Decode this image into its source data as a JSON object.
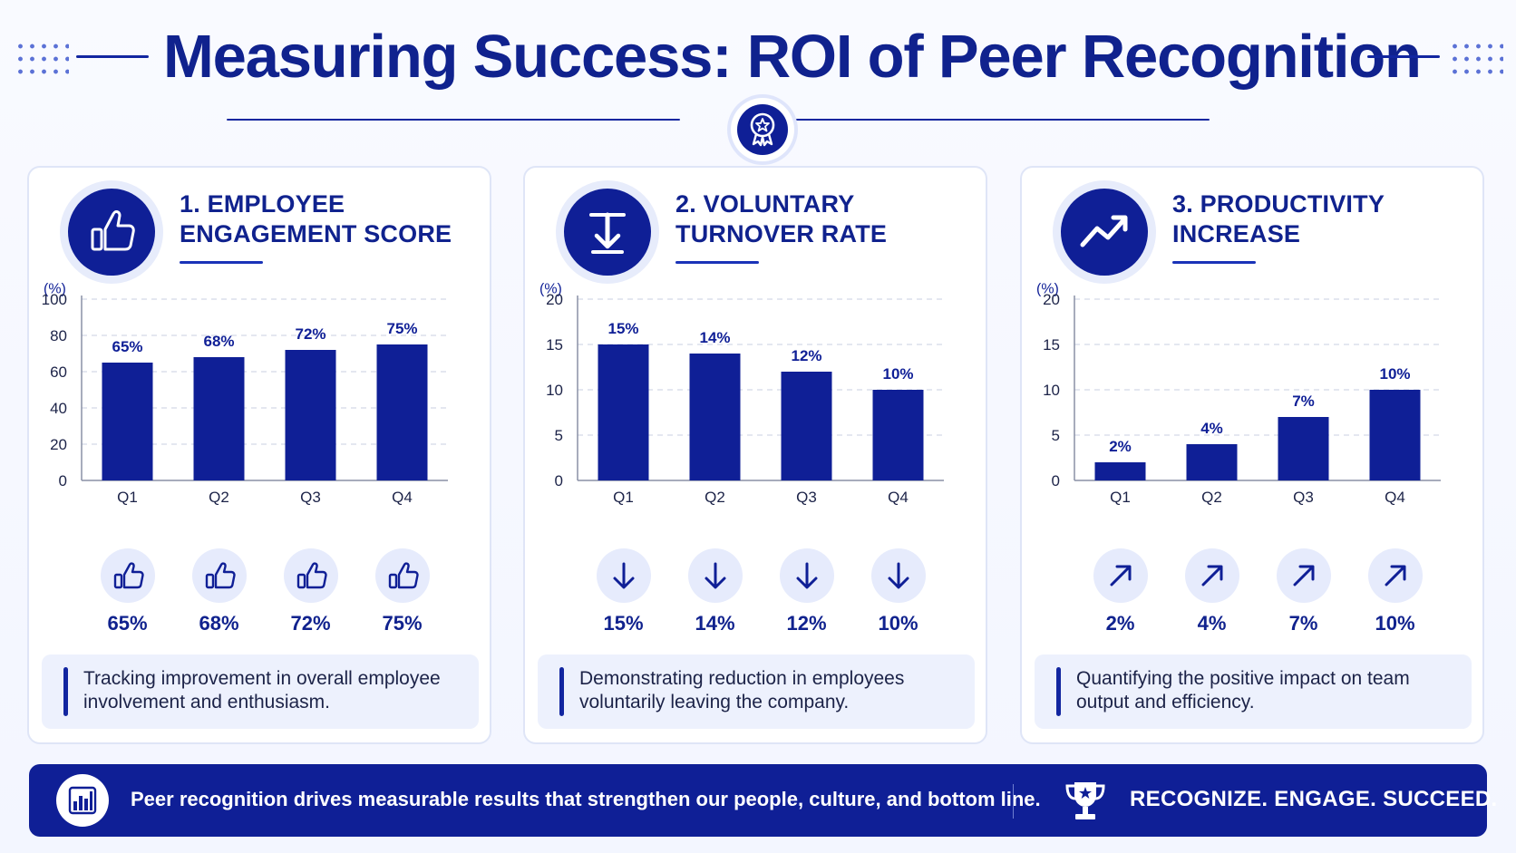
{
  "header": {
    "title": "Measuring Success: ROI of Peer Recognition"
  },
  "colors": {
    "primary": "#0f1f96",
    "accent_light": "#e6ebfc",
    "panel_border": "#dfe5f7",
    "text_dark": "#1c2348"
  },
  "panels": [
    {
      "title_line1": "1. EMPLOYEE",
      "title_line2": "ENGAGEMENT SCORE",
      "icon": "thumbs-up-icon",
      "metric_icon": "thumbs-up-icon",
      "metrics": [
        "65%",
        "68%",
        "72%",
        "75%"
      ],
      "description": "Tracking improvement in overall employee involvement and enthusiasm."
    },
    {
      "title_line1": "2. VOLUNTARY",
      "title_line2": "TURNOVER RATE",
      "icon": "turnover-down-arrow-icon",
      "metric_icon": "arrow-down-icon",
      "metrics": [
        "15%",
        "14%",
        "12%",
        "10%"
      ],
      "description": "Demonstrating reduction in employees voluntarily leaving the company."
    },
    {
      "title_line1": "3. PRODUCTIVITY",
      "title_line2": "INCREASE",
      "icon": "trend-up-icon",
      "metric_icon": "arrow-up-right-icon",
      "metrics": [
        "2%",
        "4%",
        "7%",
        "10%"
      ],
      "description": "Quantifying the positive impact on team output and efficiency."
    }
  ],
  "chart_data": [
    {
      "type": "bar",
      "title": "1. EMPLOYEE ENGAGEMENT SCORE",
      "ylabel": "(%)",
      "categories": [
        "Q1",
        "Q2",
        "Q3",
        "Q4"
      ],
      "values": [
        65,
        68,
        72,
        75
      ],
      "value_labels": [
        "65%",
        "68%",
        "72%",
        "75%"
      ],
      "yticks": [
        0,
        20,
        40,
        60,
        80,
        100
      ],
      "ylim": [
        0,
        100
      ],
      "grid": true
    },
    {
      "type": "bar",
      "title": "2. VOLUNTARY TURNOVER RATE",
      "ylabel": "(%)",
      "categories": [
        "Q1",
        "Q2",
        "Q3",
        "Q4"
      ],
      "values": [
        15,
        14,
        12,
        10
      ],
      "value_labels": [
        "15%",
        "14%",
        "12%",
        "10%"
      ],
      "yticks": [
        0,
        5,
        10,
        15,
        20
      ],
      "ylim": [
        0,
        20
      ],
      "grid": true
    },
    {
      "type": "bar",
      "title": "3. PRODUCTIVITY INCREASE",
      "ylabel": "(%)",
      "categories": [
        "Q1",
        "Q2",
        "Q3",
        "Q4"
      ],
      "values": [
        2,
        4,
        7,
        10
      ],
      "value_labels": [
        "2%",
        "4%",
        "7%",
        "10%"
      ],
      "yticks": [
        0,
        5,
        10,
        15,
        20
      ],
      "ylim": [
        0,
        20
      ],
      "grid": true
    }
  ],
  "footer": {
    "message": "Peer recognition drives measurable results that strengthen our people, culture, and bottom line.",
    "slogan": "RECOGNIZE. ENGAGE. SUCCEED.",
    "left_icon": "bar-chart-icon",
    "right_icon": "trophy-icon"
  }
}
